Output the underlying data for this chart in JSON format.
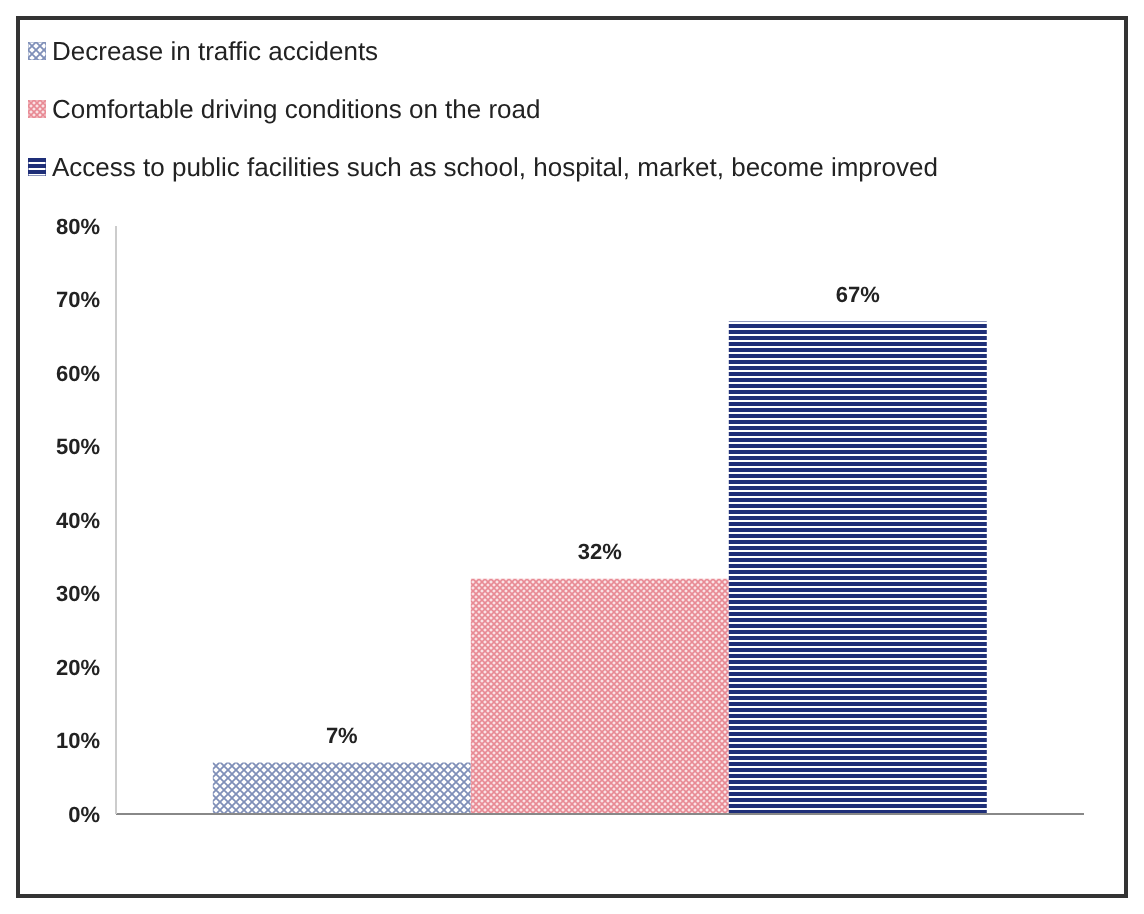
{
  "chart_data": {
    "type": "bar",
    "categories": [
      null
    ],
    "series": [
      {
        "name": "Decrease in traffic accidents",
        "color": "#7f8fb8",
        "values": [
          7
        ],
        "value_labels": [
          "7%"
        ]
      },
      {
        "name": "Comfortable driving conditions on the road",
        "color": "#e88a94",
        "values": [
          32
        ],
        "value_labels": [
          "32%"
        ]
      },
      {
        "name": "Access to public facilities such as school, hospital, market, become improved",
        "color": "#1f2f78",
        "values": [
          67
        ],
        "value_labels": [
          "67%"
        ]
      }
    ],
    "ylim": [
      0,
      80
    ],
    "yticks": [
      {
        "value": 0,
        "label": "0%"
      },
      {
        "value": 10,
        "label": "10%"
      },
      {
        "value": 20,
        "label": "20%"
      },
      {
        "value": 30,
        "label": "30%"
      },
      {
        "value": 40,
        "label": "40%"
      },
      {
        "value": 50,
        "label": "50%"
      },
      {
        "value": 60,
        "label": "60%"
      },
      {
        "value": 70,
        "label": "70%"
      },
      {
        "value": 80,
        "label": "80%"
      }
    ],
    "grid": false,
    "legend": "top left"
  }
}
